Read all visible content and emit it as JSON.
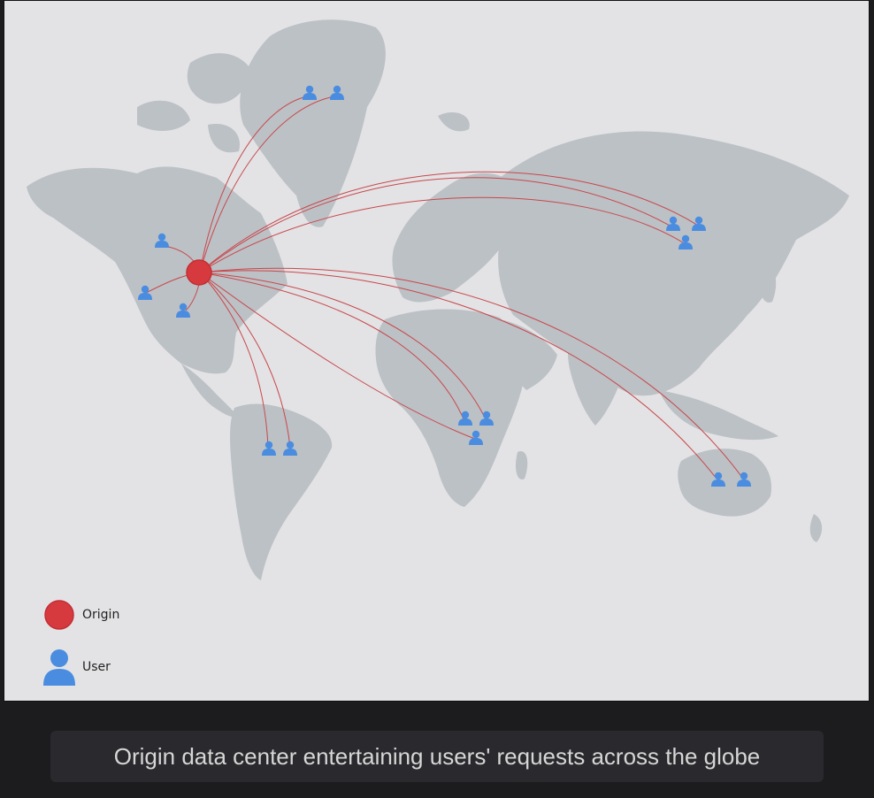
{
  "colors": {
    "origin": "#d63a3f",
    "user": "#4a8de0",
    "land": "#bcc1c5",
    "ocean": "#e3e3e5",
    "link": "#c8474c"
  },
  "origin": {
    "name": "Origin",
    "region": "North America"
  },
  "users": [
    {
      "region": "Greenland",
      "id": "u1"
    },
    {
      "region": "Greenland",
      "id": "u2"
    },
    {
      "region": "Western Canada",
      "id": "u3"
    },
    {
      "region": "Western USA",
      "id": "u4"
    },
    {
      "region": "Central USA",
      "id": "u5"
    },
    {
      "region": "Siberia",
      "id": "u6"
    },
    {
      "region": "Siberia",
      "id": "u7"
    },
    {
      "region": "Siberia",
      "id": "u8"
    },
    {
      "region": "Central Africa",
      "id": "u9"
    },
    {
      "region": "Central Africa",
      "id": "u10"
    },
    {
      "region": "Central Africa",
      "id": "u11"
    },
    {
      "region": "South America",
      "id": "u12"
    },
    {
      "region": "South America",
      "id": "u13"
    },
    {
      "region": "Australia",
      "id": "u14"
    },
    {
      "region": "Australia",
      "id": "u15"
    }
  ],
  "legend": {
    "origin_label": "Origin",
    "user_label": "User"
  },
  "caption": "Origin data center entertaining users' requests across the globe"
}
